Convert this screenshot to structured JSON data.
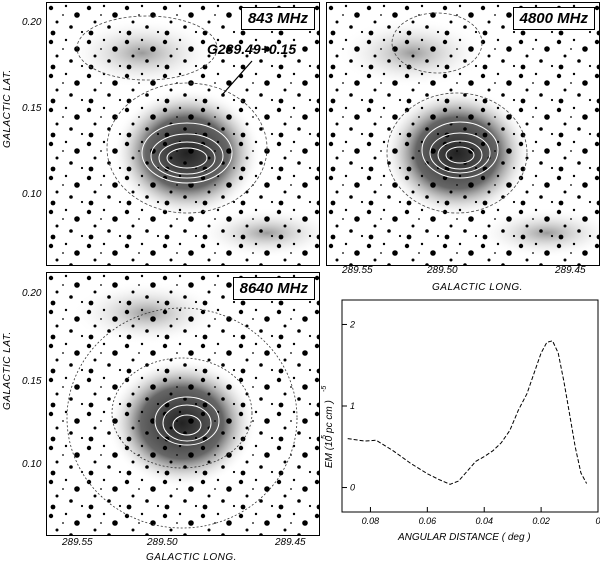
{
  "panels": [
    {
      "freq_label": "843 MHz",
      "source_label": "G289.49+0.15"
    },
    {
      "freq_label": "4800 MHz"
    },
    {
      "freq_label": "8640 MHz"
    }
  ],
  "axes": {
    "lat_label": "GALACTIC LAT.",
    "long_label": "GALACTIC LONG.",
    "lat_ticks": [
      "0.20",
      "0.15",
      "0.10"
    ],
    "long_ticks": [
      "289.55",
      "289.50",
      "289.45"
    ]
  },
  "chart_data": {
    "type": "line",
    "xlabel": "ANGULAR DISTANCE  ( deg )",
    "ylabel": "EM (10   pc cm   )",
    "ylabel_exp1": "5",
    "ylabel_exp2": "-5",
    "x_ticks": [
      "0.08",
      "0.06",
      "0.04",
      "0.02",
      "0"
    ],
    "y_ticks": [
      "0",
      "1",
      "2"
    ],
    "xlim": [
      0.09,
      0.0
    ],
    "ylim": [
      -0.3,
      2.3
    ],
    "x": [
      0.088,
      0.082,
      0.078,
      0.072,
      0.066,
      0.06,
      0.056,
      0.052,
      0.049,
      0.046,
      0.043,
      0.04,
      0.037,
      0.034,
      0.031,
      0.028,
      0.025,
      0.022,
      0.02,
      0.018,
      0.016,
      0.014,
      0.012,
      0.01,
      0.008,
      0.006,
      0.004
    ],
    "y": [
      0.6,
      0.57,
      0.58,
      0.45,
      0.3,
      0.17,
      0.1,
      0.04,
      0.08,
      0.2,
      0.32,
      0.38,
      0.45,
      0.55,
      0.7,
      0.95,
      1.15,
      1.45,
      1.65,
      1.78,
      1.8,
      1.65,
      1.3,
      0.9,
      0.5,
      0.18,
      0.05
    ]
  }
}
